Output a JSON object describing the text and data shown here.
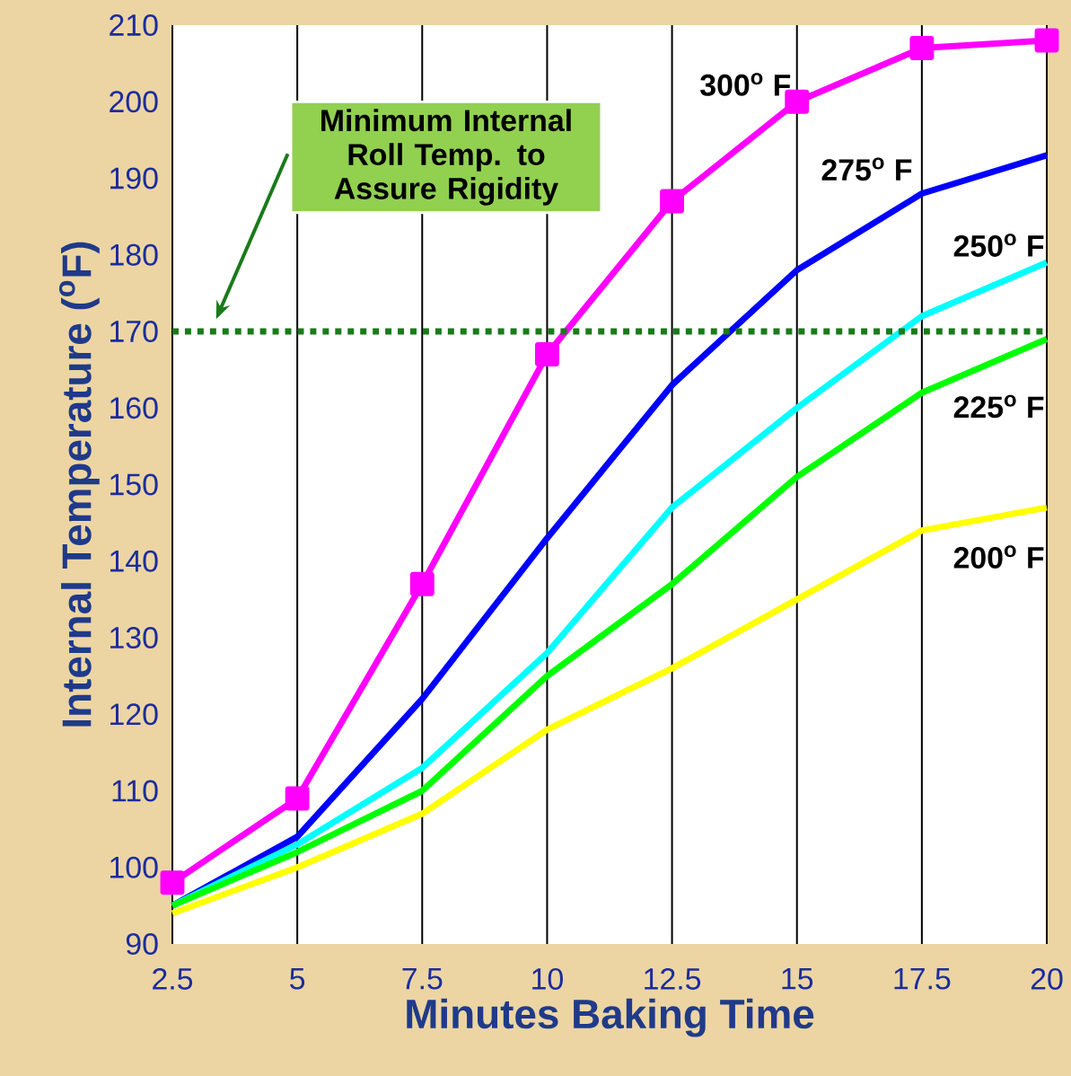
{
  "chart_data": {
    "type": "line",
    "xlabel": "Minutes Baking Time",
    "ylabel": "Internal Temperature ($^{o}$F)",
    "x": [
      2.5,
      5,
      7.5,
      10,
      12.5,
      15,
      17.5,
      20
    ],
    "xlim": [
      2.5,
      20
    ],
    "xticks": [
      2.5,
      5,
      7.5,
      10,
      12.5,
      15,
      17.5,
      20
    ],
    "ylim": [
      90,
      210
    ],
    "yticks": [
      90,
      100,
      110,
      120,
      130,
      140,
      150,
      160,
      170,
      180,
      190,
      200,
      210
    ],
    "grid": "x",
    "line_style": "solid",
    "series": [
      {
        "name": "300$^{o}$ F",
        "color": "#ff00ff",
        "marker": "square",
        "values": [
          98,
          109,
          137,
          167,
          187,
          200,
          207,
          208
        ]
      },
      {
        "name": "275$^{o}$ F",
        "color": "#0000ff",
        "marker": "none",
        "values": [
          95,
          104,
          122,
          143,
          163,
          178,
          188,
          193
        ]
      },
      {
        "name": "250$^{o}$ F",
        "color": "#00ffff",
        "marker": "none",
        "values": [
          95,
          103,
          113,
          128,
          147,
          160,
          172,
          179
        ]
      },
      {
        "name": "225$^{o}$ F",
        "color": "#00ff00",
        "marker": "none",
        "values": [
          95,
          102,
          110,
          125,
          137,
          151,
          162,
          169
        ]
      },
      {
        "name": "200$^{o}$ F",
        "color": "#ffff00",
        "marker": "none",
        "values": [
          94,
          100,
          107,
          118,
          126,
          135,
          144,
          147
        ]
      }
    ],
    "ref_lines": [
      {
        "axis": "y",
        "value": 170,
        "color": "#1a7a1a",
        "line_style": "dotted"
      }
    ],
    "annotations": [
      "Minimum Internal Roll Temp. to Assure Rigidity"
    ]
  }
}
